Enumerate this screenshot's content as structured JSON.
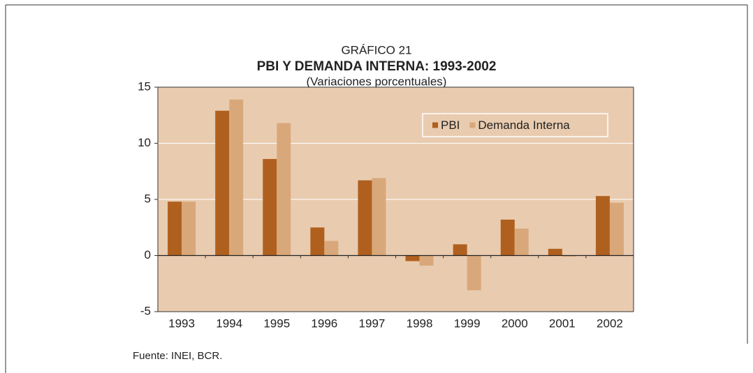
{
  "chart_data": {
    "type": "bar",
    "heading": "GRÁFICO 21",
    "title": "PBI Y DEMANDA INTERNA: 1993-2002",
    "subtitle": "(Variaciones porcentuales)",
    "source": "Fuente: INEI, BCR.",
    "categories": [
      "1993",
      "1994",
      "1995",
      "1996",
      "1997",
      "1998",
      "1999",
      "2000",
      "2001",
      "2002"
    ],
    "series": [
      {
        "name": "PBI",
        "color": "#b0601e",
        "values": [
          4.8,
          12.9,
          8.6,
          2.5,
          6.7,
          -0.5,
          1.0,
          3.2,
          0.6,
          5.3
        ]
      },
      {
        "name": "Demanda Interna",
        "color": "#d9a87a",
        "values": [
          4.8,
          13.9,
          11.8,
          1.3,
          6.9,
          -0.9,
          -3.1,
          2.4,
          -0.1,
          4.7
        ]
      }
    ],
    "ylim": [
      -5,
      15
    ],
    "yticks": [
      -5,
      0,
      5,
      10,
      15
    ],
    "grid": true,
    "legend": "upper right",
    "background": "#e9ccb0"
  }
}
